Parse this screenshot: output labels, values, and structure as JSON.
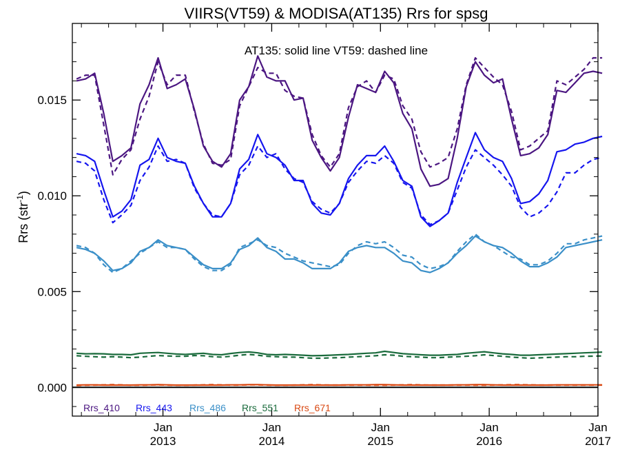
{
  "chart_data": {
    "type": "line",
    "title": "VIIRS(VT59) & MODISA(AT135)  Rrs for spsg",
    "annotation": "AT135: solid line    VT59: dashed line",
    "ylabel": "Rrs (str",
    "ylabel_exp": "-1",
    "ylabel_close": ")",
    "ylim": [
      -0.0015,
      0.019
    ],
    "yticks": [
      0.0,
      0.005,
      0.01,
      0.015
    ],
    "ytick_labels": [
      "0.000",
      "0.005",
      "0.010",
      "0.015"
    ],
    "xlim": [
      "2012-03-01",
      "2017-01-01"
    ],
    "x_tick_labels": [
      {
        "date": "2013-01-01",
        "month": "Jan",
        "year": "2013"
      },
      {
        "date": "2014-01-01",
        "month": "Jan",
        "year": "2014"
      },
      {
        "date": "2015-01-01",
        "month": "Jan",
        "year": "2015"
      },
      {
        "date": "2016-01-01",
        "month": "Jan",
        "year": "2016"
      },
      {
        "date": "2017-01-01",
        "month": "Jan",
        "year": "2017"
      }
    ],
    "x": [
      "2012-03",
      "2012-04",
      "2012-05",
      "2012-06",
      "2012-07",
      "2012-08",
      "2012-09",
      "2012-10",
      "2012-11",
      "2012-12",
      "2013-01",
      "2013-02",
      "2013-03",
      "2013-04",
      "2013-05",
      "2013-06",
      "2013-07",
      "2013-08",
      "2013-09",
      "2013-10",
      "2013-11",
      "2013-12",
      "2014-01",
      "2014-02",
      "2014-03",
      "2014-04",
      "2014-05",
      "2014-06",
      "2014-07",
      "2014-08",
      "2014-09",
      "2014-10",
      "2014-11",
      "2014-12",
      "2015-01",
      "2015-02",
      "2015-03",
      "2015-04",
      "2015-05",
      "2015-06",
      "2015-07",
      "2015-08",
      "2015-09",
      "2015-10",
      "2015-11",
      "2015-12",
      "2016-01",
      "2016-02",
      "2016-03",
      "2016-04",
      "2016-05",
      "2016-06",
      "2016-07",
      "2016-08",
      "2016-09",
      "2016-10",
      "2016-11",
      "2016-12",
      "2017-01"
    ],
    "series": [
      {
        "name": "Rrs_410",
        "color": "#4b1681",
        "sensor": "AT135",
        "style": "solid",
        "values": [
          0.016,
          0.0161,
          0.0164,
          0.0143,
          0.0118,
          0.0121,
          0.0125,
          0.0148,
          0.0158,
          0.0172,
          0.0156,
          0.0158,
          0.0161,
          0.0145,
          0.0126,
          0.0118,
          0.0115,
          0.0122,
          0.015,
          0.0157,
          0.0173,
          0.0162,
          0.016,
          0.016,
          0.015,
          0.0151,
          0.0129,
          0.012,
          0.0113,
          0.012,
          0.0141,
          0.0158,
          0.0156,
          0.0154,
          0.0165,
          0.0159,
          0.0143,
          0.0135,
          0.0114,
          0.0105,
          0.0106,
          0.0109,
          0.013,
          0.0157,
          0.017,
          0.0163,
          0.0159,
          0.0161,
          0.014,
          0.0121,
          0.0122,
          0.0125,
          0.0132,
          0.0155,
          0.0154,
          0.0159,
          0.0164,
          0.0165,
          0.0164
        ]
      },
      {
        "name": "Rrs_410",
        "color": "#4b1681",
        "sensor": "VT59",
        "style": "dashed",
        "values": [
          0.0161,
          0.0163,
          0.0163,
          0.0137,
          0.0111,
          0.0119,
          0.0124,
          0.014,
          0.0152,
          0.017,
          0.0158,
          0.0163,
          0.0163,
          0.0144,
          0.0127,
          0.0117,
          0.0116,
          0.0119,
          0.0147,
          0.0157,
          0.0167,
          0.0164,
          0.0164,
          0.0155,
          0.0152,
          0.0151,
          0.0132,
          0.0121,
          0.0115,
          0.0122,
          0.0146,
          0.0157,
          0.016,
          0.0154,
          0.0163,
          0.0161,
          0.0147,
          0.014,
          0.0123,
          0.0115,
          0.0117,
          0.012,
          0.0135,
          0.0158,
          0.0172,
          0.0167,
          0.0162,
          0.0158,
          0.0144,
          0.0124,
          0.0126,
          0.013,
          0.0134,
          0.016,
          0.0158,
          0.0162,
          0.0166,
          0.0172,
          0.0172
        ]
      },
      {
        "name": "Rrs_443",
        "color": "#1515ee",
        "sensor": "AT135",
        "style": "solid",
        "values": [
          0.0122,
          0.0121,
          0.0118,
          0.0103,
          0.0089,
          0.0092,
          0.0098,
          0.0116,
          0.0119,
          0.013,
          0.012,
          0.0118,
          0.0117,
          0.0105,
          0.0096,
          0.0089,
          0.0089,
          0.0096,
          0.0114,
          0.0119,
          0.0132,
          0.0122,
          0.012,
          0.0116,
          0.0108,
          0.0108,
          0.0096,
          0.0091,
          0.009,
          0.0096,
          0.0109,
          0.0116,
          0.0121,
          0.0121,
          0.0126,
          0.0118,
          0.0108,
          0.0105,
          0.0089,
          0.0084,
          0.0087,
          0.0091,
          0.0107,
          0.012,
          0.0133,
          0.0124,
          0.012,
          0.0118,
          0.0109,
          0.0096,
          0.0097,
          0.0101,
          0.0108,
          0.0123,
          0.0124,
          0.0127,
          0.0128,
          0.013,
          0.0131
        ]
      },
      {
        "name": "Rrs_443",
        "color": "#1515ee",
        "sensor": "VT59",
        "style": "dashed",
        "values": [
          0.0118,
          0.0117,
          0.0113,
          0.0098,
          0.0086,
          0.009,
          0.0095,
          0.0108,
          0.0115,
          0.0126,
          0.0118,
          0.0119,
          0.0117,
          0.0104,
          0.0096,
          0.009,
          0.0089,
          0.0096,
          0.0111,
          0.0116,
          0.0126,
          0.012,
          0.0122,
          0.0114,
          0.0109,
          0.0107,
          0.0097,
          0.0093,
          0.0091,
          0.0096,
          0.0107,
          0.0113,
          0.0118,
          0.0117,
          0.0121,
          0.0117,
          0.0107,
          0.0104,
          0.009,
          0.0085,
          0.0087,
          0.0091,
          0.0103,
          0.0115,
          0.0124,
          0.012,
          0.0116,
          0.0111,
          0.0105,
          0.0094,
          0.0089,
          0.0091,
          0.0095,
          0.0102,
          0.0112,
          0.0112,
          0.0116,
          0.0119,
          0.012
        ]
      },
      {
        "name": "Rrs_486",
        "color": "#3a8fc8",
        "sensor": "AT135",
        "style": "solid",
        "values": [
          0.0073,
          0.0072,
          0.007,
          0.0066,
          0.0061,
          0.0062,
          0.0065,
          0.0071,
          0.0073,
          0.0077,
          0.0074,
          0.0073,
          0.0072,
          0.0068,
          0.0064,
          0.0062,
          0.0062,
          0.0065,
          0.0072,
          0.0074,
          0.0078,
          0.0073,
          0.0071,
          0.0067,
          0.0067,
          0.0065,
          0.0062,
          0.0062,
          0.0062,
          0.0065,
          0.0071,
          0.0073,
          0.0074,
          0.0073,
          0.0073,
          0.007,
          0.0066,
          0.0065,
          0.0061,
          0.006,
          0.0062,
          0.0065,
          0.007,
          0.0074,
          0.0079,
          0.0076,
          0.0074,
          0.0073,
          0.007,
          0.0066,
          0.0063,
          0.0063,
          0.0065,
          0.0068,
          0.0073,
          0.0074,
          0.0075,
          0.0076,
          0.0077
        ]
      },
      {
        "name": "Rrs_486",
        "color": "#3a8fc8",
        "sensor": "VT59",
        "style": "dashed",
        "values": [
          0.0074,
          0.0073,
          0.007,
          0.0064,
          0.006,
          0.0062,
          0.0066,
          0.007,
          0.0073,
          0.0076,
          0.0073,
          0.0073,
          0.0072,
          0.0067,
          0.0063,
          0.0061,
          0.0061,
          0.0064,
          0.0073,
          0.0075,
          0.0077,
          0.0074,
          0.0073,
          0.007,
          0.0068,
          0.0066,
          0.0065,
          0.0064,
          0.0063,
          0.0064,
          0.007,
          0.0074,
          0.0076,
          0.0075,
          0.0076,
          0.0073,
          0.0069,
          0.0068,
          0.0064,
          0.0062,
          0.0063,
          0.0065,
          0.0071,
          0.0076,
          0.008,
          0.0076,
          0.0074,
          0.0071,
          0.0068,
          0.0067,
          0.0064,
          0.0064,
          0.0066,
          0.007,
          0.0075,
          0.0075,
          0.0077,
          0.0078,
          0.0079
        ]
      },
      {
        "name": "Rrs_551",
        "color": "#1a6b3c",
        "sensor": "AT135",
        "style": "solid",
        "values": [
          0.00178,
          0.00175,
          0.00176,
          0.00175,
          0.00172,
          0.00172,
          0.0017,
          0.00178,
          0.0018,
          0.00182,
          0.00178,
          0.00174,
          0.00172,
          0.00175,
          0.00178,
          0.00172,
          0.0017,
          0.00177,
          0.00182,
          0.00185,
          0.0018,
          0.00172,
          0.0017,
          0.00172,
          0.0017,
          0.00168,
          0.00165,
          0.00166,
          0.00168,
          0.0017,
          0.00172,
          0.00175,
          0.00178,
          0.0018,
          0.00188,
          0.00182,
          0.00176,
          0.00173,
          0.0017,
          0.00168,
          0.00168,
          0.0017,
          0.00172,
          0.00178,
          0.00182,
          0.00186,
          0.0018,
          0.00175,
          0.00172,
          0.00168,
          0.00168,
          0.0017,
          0.00172,
          0.00174,
          0.00176,
          0.00178,
          0.0018,
          0.00182,
          0.00184
        ]
      },
      {
        "name": "Rrs_551",
        "color": "#1a6b3c",
        "sensor": "VT59",
        "style": "dashed",
        "values": [
          0.00165,
          0.00162,
          0.0016,
          0.00158,
          0.0016,
          0.00158,
          0.00155,
          0.00158,
          0.00162,
          0.00166,
          0.00164,
          0.00162,
          0.00162,
          0.00166,
          0.00165,
          0.0016,
          0.00158,
          0.00162,
          0.00168,
          0.00172,
          0.00168,
          0.00162,
          0.0016,
          0.00158,
          0.00158,
          0.00155,
          0.00152,
          0.00152,
          0.00154,
          0.00155,
          0.00158,
          0.0016,
          0.00162,
          0.00165,
          0.0017,
          0.00168,
          0.00162,
          0.0016,
          0.00158,
          0.00155,
          0.00155,
          0.00158,
          0.0016,
          0.00162,
          0.00165,
          0.0017,
          0.00166,
          0.00162,
          0.00158,
          0.00155,
          0.00152,
          0.00154,
          0.00156,
          0.00158,
          0.0016,
          0.0016,
          0.00162,
          0.00163,
          0.00164
        ]
      },
      {
        "name": "Rrs_671",
        "color": "#d94812",
        "sensor": "AT135",
        "style": "solid",
        "values": [
          0.00012,
          0.00013,
          0.00013,
          0.00012,
          0.00012,
          0.00012,
          0.00012,
          0.00013,
          0.00013,
          0.00014,
          0.00013,
          0.00012,
          0.00012,
          0.00012,
          0.00012,
          0.00012,
          0.00012,
          0.00013,
          0.00013,
          0.00014,
          0.00014,
          0.00013,
          0.00012,
          0.00012,
          0.00012,
          0.00012,
          0.00012,
          0.00012,
          0.00012,
          0.00012,
          0.00013,
          0.00013,
          0.00013,
          0.00014,
          0.00014,
          0.00013,
          0.00012,
          0.00012,
          0.00012,
          0.00012,
          0.00012,
          0.00012,
          0.00013,
          0.00013,
          0.00014,
          0.00014,
          0.00013,
          0.00012,
          0.00012,
          0.00012,
          0.00012,
          0.00012,
          0.00012,
          0.00013,
          0.00013,
          0.00013,
          0.00013,
          0.00013,
          0.00013
        ]
      },
      {
        "name": "Rrs_671",
        "color": "#d94812",
        "sensor": "VT59",
        "style": "dashed",
        "values": [
          0.0001,
          0.00011,
          0.00012,
          0.00013,
          0.00014,
          0.00013,
          0.00011,
          0.00011,
          0.00012,
          0.00013,
          0.00012,
          0.00011,
          0.00011,
          0.00012,
          0.00013,
          0.00014,
          0.00013,
          0.00012,
          0.00012,
          0.00013,
          0.00013,
          0.00012,
          0.00011,
          0.00011,
          0.00012,
          0.00013,
          0.00014,
          0.00013,
          0.00012,
          0.00012,
          0.00012,
          0.00012,
          0.00012,
          0.00011,
          0.00011,
          0.00012,
          0.00013,
          0.00014,
          0.00013,
          0.00012,
          0.00012,
          0.00012,
          0.00012,
          0.00012,
          0.00011,
          0.00011,
          0.00012,
          0.00013,
          0.00014,
          0.00014,
          0.00013,
          0.00012,
          0.00012,
          0.00012,
          0.00012,
          0.00012,
          0.00012,
          0.00012,
          0.00012
        ]
      }
    ],
    "zero_line": {
      "value": 0.0,
      "color": "#000000"
    },
    "legend": [
      {
        "label": "Rrs_410",
        "color": "#4b1681"
      },
      {
        "label": "Rrs_443",
        "color": "#1515ee"
      },
      {
        "label": "Rrs_486",
        "color": "#3a8fc8"
      },
      {
        "label": "Rrs_551",
        "color": "#1a6b3c"
      },
      {
        "label": "Rrs_671",
        "color": "#d94812"
      }
    ],
    "legend_placement": "bottom-left",
    "grid": false
  }
}
